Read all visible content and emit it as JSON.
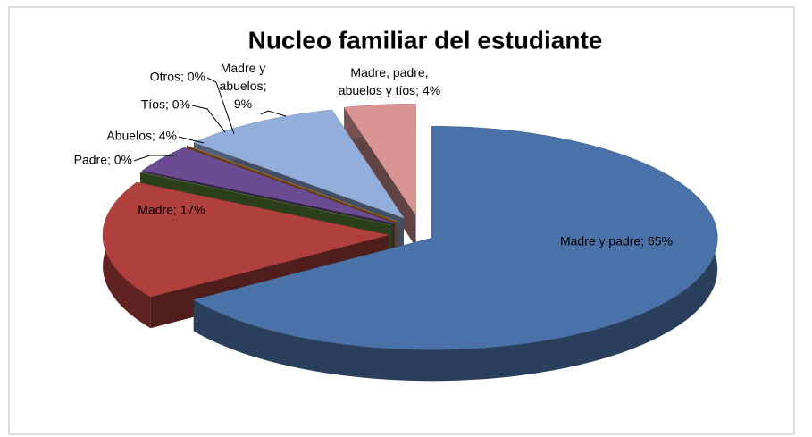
{
  "chart_data": {
    "type": "pie",
    "title": "Nucleo familiar del estudiante",
    "values": [
      65,
      17,
      0,
      4,
      0,
      0,
      9,
      4
    ],
    "value_labels": [
      "Madre y padre; 65%",
      "Madre; 17%",
      "Padre; 0%",
      "Abuelos; 4%",
      "Tíos; 0%",
      "Otros; 0%",
      "Madre y\nabuelos;\n9%",
      "Madre, padre,\nabuelos y tíos; 4%"
    ],
    "colors": [
      "#4a72a8",
      "#b0403d",
      "#5f8c3a",
      "#6b4c93",
      "#3c9ab4",
      "#e08a2e",
      "#94aedb",
      "#d99594"
    ]
  }
}
